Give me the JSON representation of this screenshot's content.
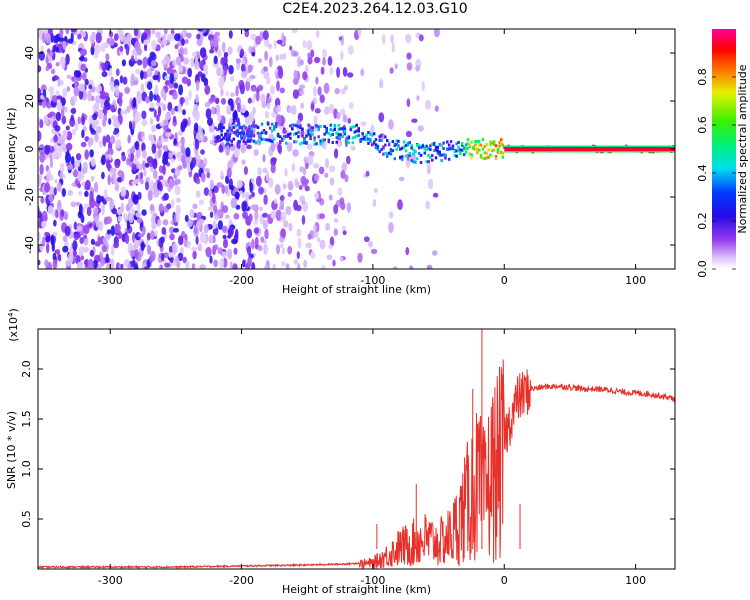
{
  "title": "C2E4.2023.264.12.03.G10",
  "chart_data": [
    {
      "type": "heatmap",
      "title": "C2E4.2023.264.12.03.G10",
      "xlabel": "Height of straight line (km)",
      "ylabel": "Frequency (Hz)",
      "xlim": [
        -355,
        130
      ],
      "ylim": [
        -50,
        50
      ],
      "xticks": [
        -300,
        -200,
        -100,
        0,
        100
      ],
      "xtick_labels": [
        "-300",
        "-200",
        "-100",
        "0",
        "100"
      ],
      "yticks": [
        -40,
        -20,
        0,
        20,
        40
      ],
      "ytick_labels": [
        "-40",
        "-20",
        "0",
        "20",
        "40"
      ],
      "colorbar": {
        "label": "Normalized spectral amplitude",
        "range": [
          0,
          1
        ],
        "ticks": [
          0.0,
          0.2,
          0.4,
          0.6,
          0.8
        ],
        "tick_labels": [
          "0.0",
          "0.2",
          "0.4",
          "0.6",
          "0.8"
        ]
      },
      "ridge": {
        "x": [
          -220,
          -200,
          -180,
          -160,
          -140,
          -120,
          -105,
          -95,
          -85,
          -75,
          -65,
          -55,
          -45,
          -35,
          -25,
          -15,
          -5,
          0,
          20,
          60,
          100,
          130
        ],
        "freq": [
          5,
          6,
          7,
          6,
          6,
          6,
          6,
          2,
          0,
          -1,
          -2,
          -1,
          -1,
          0,
          0,
          0,
          0,
          0,
          0,
          0,
          0,
          0
        ],
        "amplitude": [
          0.4,
          0.4,
          0.45,
          0.45,
          0.5,
          0.55,
          0.5,
          0.45,
          0.5,
          0.55,
          0.5,
          0.5,
          0.45,
          0.55,
          0.8,
          0.85,
          0.9,
          0.9,
          0.95,
          0.95,
          0.95,
          0.95
        ]
      },
      "noise_region": [
        -355,
        -110
      ]
    },
    {
      "type": "line",
      "xlabel": "Height of straight line (km)",
      "ylabel": "SNR (10 * v/v)",
      "scale_label": "(x10",
      "scale_exp": "4",
      "scale_close": ")",
      "xlim": [
        -355,
        130
      ],
      "ylim": [
        0,
        2.4
      ],
      "xticks": [
        -300,
        -200,
        -100,
        0,
        100
      ],
      "xtick_labels": [
        "-300",
        "-200",
        "-100",
        "0",
        "100"
      ],
      "yticks": [
        0.5,
        1.0,
        1.5,
        2.0
      ],
      "ytick_labels": [
        "0.5",
        "1.0",
        "1.5",
        "2.0"
      ],
      "series": [
        {
          "color": "#e8302a",
          "x": [
            -355,
            -300,
            -250,
            -200,
            -150,
            -120,
            -100,
            -90,
            -80,
            -70,
            -60,
            -50,
            -40,
            -30,
            -25,
            -20,
            -15,
            -10,
            -5,
            0,
            5,
            10,
            20,
            30,
            40,
            50,
            60,
            70,
            80,
            90,
            100,
            110,
            120,
            130
          ],
          "y": [
            0.02,
            0.02,
            0.02,
            0.03,
            0.04,
            0.05,
            0.07,
            0.15,
            0.25,
            0.3,
            0.35,
            0.3,
            0.4,
            0.7,
            0.9,
            1.0,
            0.85,
            1.1,
            1.2,
            1.3,
            1.5,
            1.7,
            1.8,
            1.82,
            1.83,
            1.82,
            1.8,
            1.8,
            1.79,
            1.77,
            1.76,
            1.75,
            1.73,
            1.7
          ]
        }
      ],
      "spikes": [
        {
          "x": -17,
          "y": 2.4
        },
        {
          "x": -24,
          "y": 1.8
        },
        {
          "x": -67,
          "y": 0.85
        },
        {
          "x": -97,
          "y": 0.45
        },
        {
          "x": 12,
          "y": 0.65
        }
      ]
    }
  ]
}
